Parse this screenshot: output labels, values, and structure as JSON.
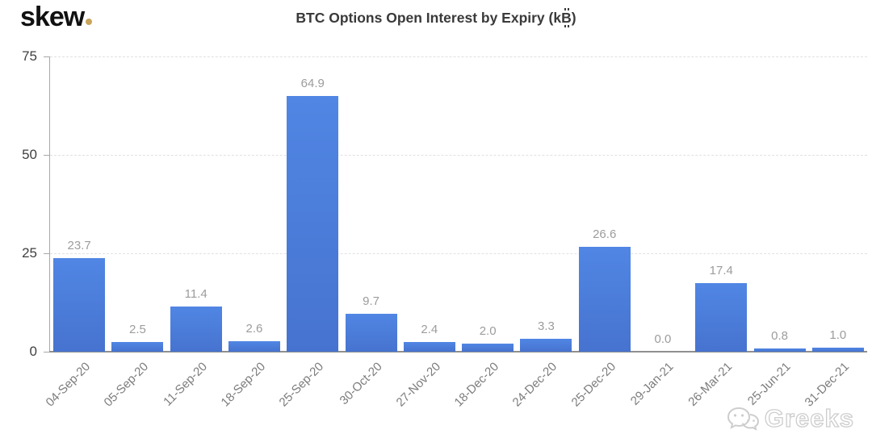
{
  "header": {
    "logo": {
      "text": "skew",
      "dot_color": "#c9a45c"
    },
    "title": {
      "text": "BTC Options Open Interest by Expiry (k₿)",
      "render_prefix": "BTC Options Open Interest by Expiry (k",
      "btc_symbol_base": "B",
      "render_suffix": ")"
    }
  },
  "chart_data": {
    "type": "bar",
    "title": "BTC Options Open Interest by Expiry (k₿)",
    "categories": [
      "04-Sep-20",
      "05-Sep-20",
      "11-Sep-20",
      "18-Sep-20",
      "25-Sep-20",
      "30-Oct-20",
      "27-Nov-20",
      "18-Dec-20",
      "24-Dec-20",
      "25-Dec-20",
      "29-Jan-21",
      "26-Mar-21",
      "25-Jun-21",
      "31-Dec-21"
    ],
    "values": [
      23.7,
      2.5,
      11.4,
      2.6,
      64.9,
      9.7,
      2.4,
      2.0,
      3.3,
      26.6,
      0.0,
      17.4,
      0.8,
      1.0
    ],
    "value_labels": [
      "23.7",
      "2.5",
      "11.4",
      "2.6",
      "64.9",
      "9.7",
      "2.4",
      "2.0",
      "3.3",
      "26.6",
      "0.0",
      "17.4",
      "0.8",
      "1.0"
    ],
    "xlabel": "",
    "ylabel": "",
    "ylim": [
      0,
      75
    ],
    "yticks": [
      0,
      25,
      50,
      75
    ],
    "grid": "horizontal-dashed",
    "legend": "none",
    "x_tick_rotation_deg": -45,
    "colors": {
      "bar_top": "#5186e4",
      "bar_bottom": "#4673cf",
      "value_label": "#9c9c9c",
      "x_tick_label": "#7c7c7c",
      "y_tick_label": "#3f3f3f",
      "gridline": "#e1e1e1",
      "axis_line": "#8f8f8f"
    }
  },
  "watermark": {
    "icon": "wechat-icon",
    "text": "Greeks"
  }
}
